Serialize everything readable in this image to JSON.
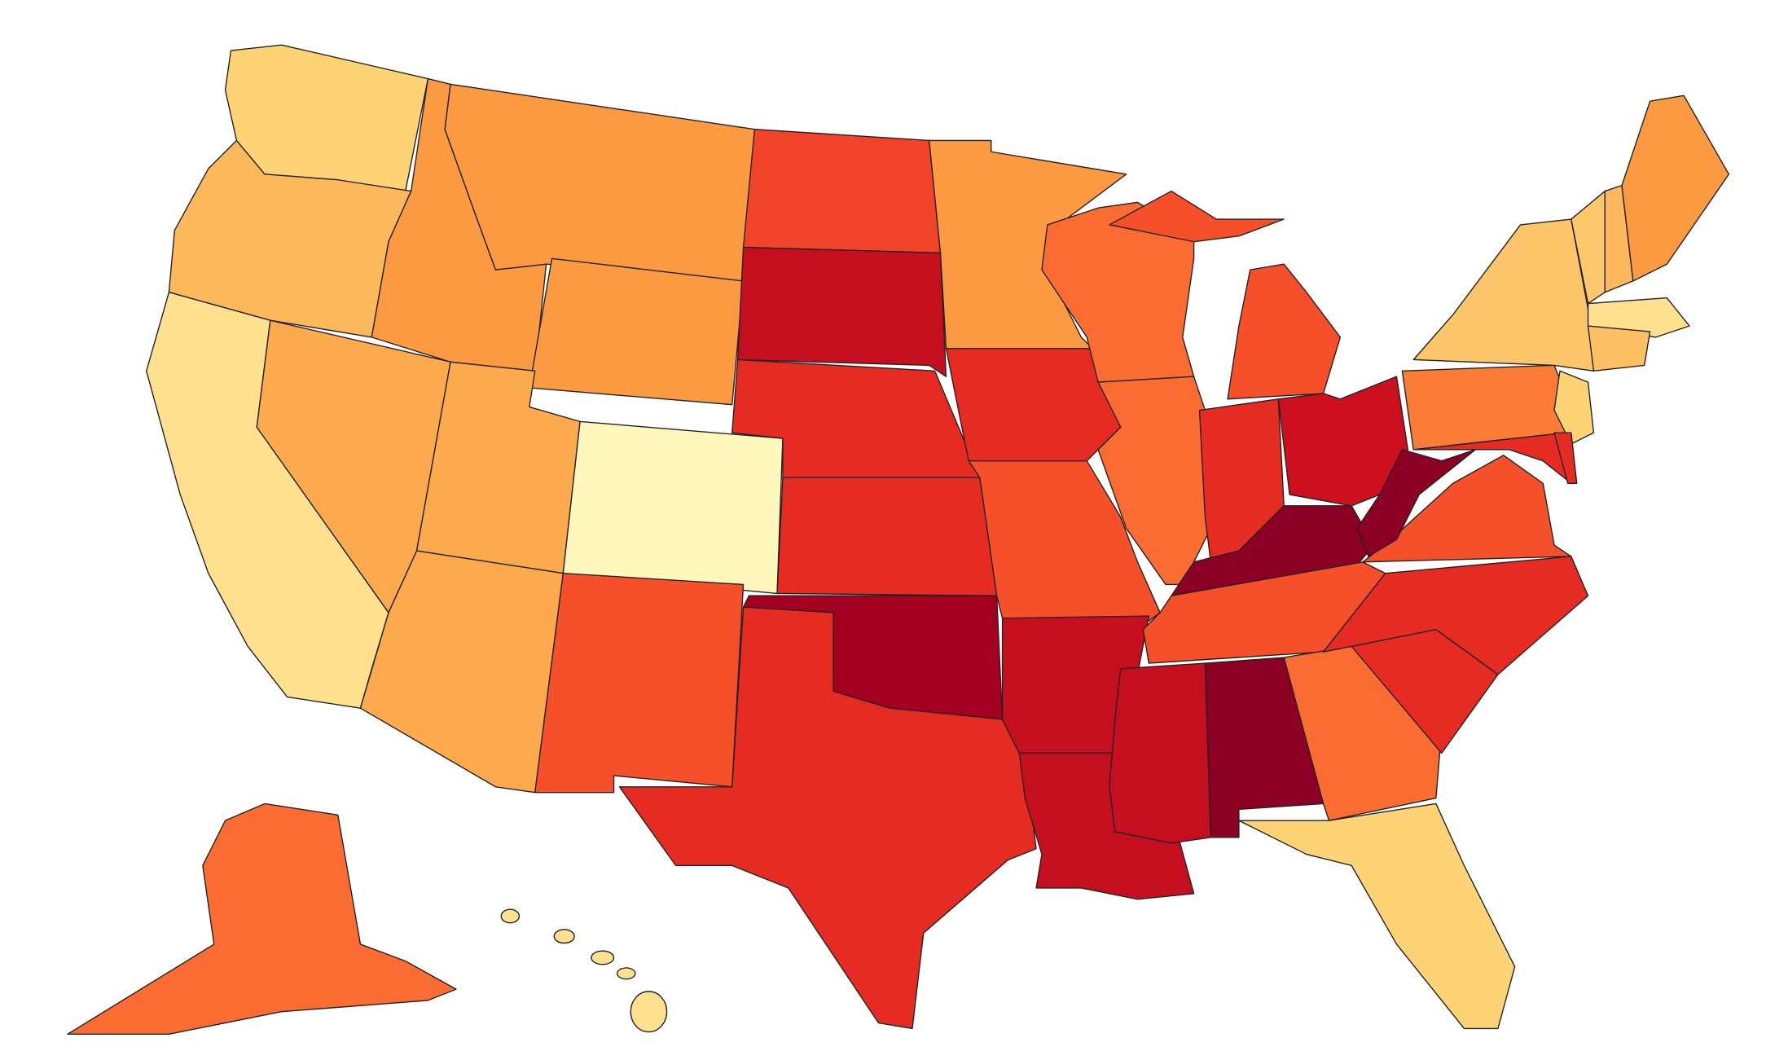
{
  "map": {
    "type": "choropleth",
    "regions": [
      {
        "color": "#fdd375"
      },
      {
        "color": "#fdb85c"
      },
      {
        "color": "#fee08f"
      },
      {
        "color": "#fdaa4e"
      },
      {
        "color": "#fc9a42"
      },
      {
        "color": "#fc9a42"
      },
      {
        "color": "#fc9a42"
      },
      {
        "color": "#fdaa4e"
      },
      {
        "color": "#fff7bc"
      },
      {
        "color": "#fdaa4e"
      },
      {
        "color": "#f55029"
      },
      {
        "color": "#f0432a"
      },
      {
        "color": "#c50f1f"
      },
      {
        "color": "#e52b22"
      },
      {
        "color": "#e52b22"
      },
      {
        "color": "#a30022"
      },
      {
        "color": "#e52b22"
      },
      {
        "color": "#fc9a42"
      },
      {
        "color": "#e52b22"
      },
      {
        "color": "#f55029"
      },
      {
        "color": "#c50f1f"
      },
      {
        "color": "#c50f1f"
      },
      {
        "color": "#fb6c33"
      },
      {
        "color": "#fb6c33"
      },
      {
        "color": "#f55029"
      },
      {
        "color": "#e52b22"
      },
      {
        "color": "#cd1020"
      },
      {
        "color": "#8c0025"
      },
      {
        "color": "#f55029"
      },
      {
        "color": "#c50f1f"
      },
      {
        "color": "#8c0025"
      },
      {
        "color": "#fb6c33"
      },
      {
        "color": "#fdd375"
      },
      {
        "color": "#e52b22"
      },
      {
        "color": "#e52b22"
      },
      {
        "color": "#f55029"
      },
      {
        "color": "#8c0025"
      },
      {
        "color": "#fb7c37"
      },
      {
        "color": "#fdc56a"
      },
      {
        "color": "#fdd375"
      },
      {
        "color": "#e52b22"
      },
      {
        "color": "#e52b22"
      },
      {
        "color": "#fdc86c"
      },
      {
        "color": "#fdb85c"
      },
      {
        "color": "#fc9a42"
      },
      {
        "color": "#fee08f"
      },
      {
        "color": "#fdc065"
      },
      {
        "color": "#fb6c33"
      },
      {
        "color": "#fee08f"
      }
    ]
  }
}
